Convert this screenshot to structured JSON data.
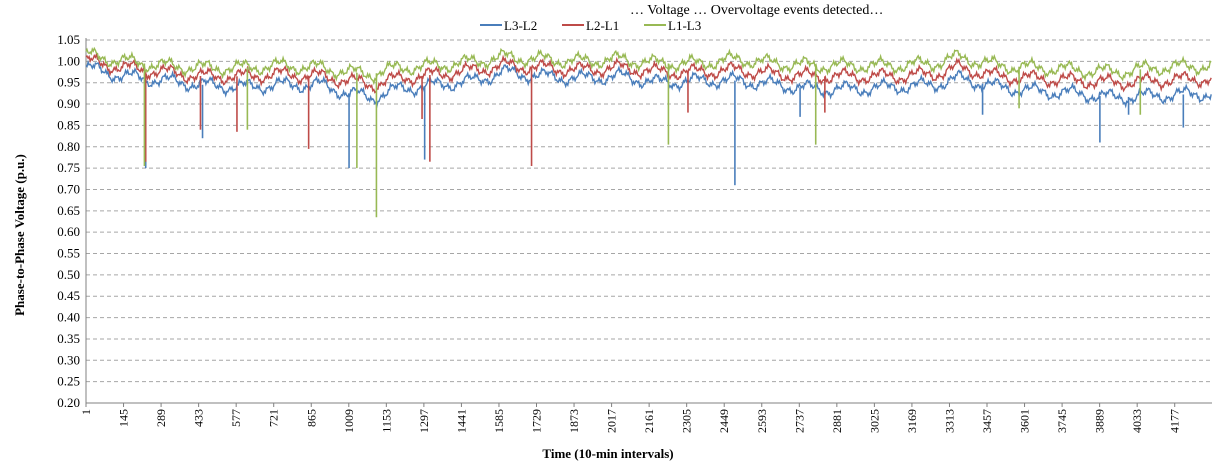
{
  "top_cut_text": "… Voltage … Overvoltage events detected…",
  "chart_data": {
    "type": "line",
    "xlabel": "Time (10-min intervals)",
    "ylabel": "Phase-to-Phase Voltage (p.u.)",
    "ylim": [
      0.2,
      1.05
    ],
    "yticks": [
      "0.20",
      "0.25",
      "0.30",
      "0.35",
      "0.40",
      "0.45",
      "0.50",
      "0.55",
      "0.60",
      "0.65",
      "0.70",
      "0.75",
      "0.80",
      "0.85",
      "0.90",
      "0.95",
      "1.00",
      "1.05"
    ],
    "xrange": [
      1,
      4320
    ],
    "xticks": [
      1,
      145,
      289,
      433,
      577,
      721,
      865,
      1009,
      1153,
      1297,
      1441,
      1585,
      1729,
      1873,
      2017,
      2161,
      2305,
      2449,
      2593,
      2737,
      2881,
      3025,
      3169,
      3313,
      3457,
      3601,
      3745,
      3889,
      4033,
      4177
    ],
    "grid": "horizontal-dashed",
    "legend_position": "top-center",
    "series": [
      {
        "name": "L3-L2",
        "color": "#4a7ebb",
        "baseline": [
          [
            1,
            0.985
          ],
          [
            150,
            0.965
          ],
          [
            300,
            0.955
          ],
          [
            450,
            0.945
          ],
          [
            600,
            0.94
          ],
          [
            750,
            0.945
          ],
          [
            900,
            0.945
          ],
          [
            1009,
            0.925
          ],
          [
            1100,
            0.915
          ],
          [
            1200,
            0.935
          ],
          [
            1350,
            0.945
          ],
          [
            1500,
            0.955
          ],
          [
            1600,
            0.975
          ],
          [
            1750,
            0.965
          ],
          [
            1900,
            0.96
          ],
          [
            2050,
            0.965
          ],
          [
            2200,
            0.95
          ],
          [
            2350,
            0.955
          ],
          [
            2500,
            0.955
          ],
          [
            2650,
            0.945
          ],
          [
            2800,
            0.935
          ],
          [
            2950,
            0.935
          ],
          [
            3100,
            0.94
          ],
          [
            3250,
            0.945
          ],
          [
            3350,
            0.96
          ],
          [
            3500,
            0.94
          ],
          [
            3650,
            0.93
          ],
          [
            3800,
            0.925
          ],
          [
            3950,
            0.915
          ],
          [
            4100,
            0.92
          ],
          [
            4320,
            0.925
          ]
        ],
        "dips": [
          [
            230,
            0.75
          ],
          [
            448,
            0.82
          ],
          [
            1010,
            0.75
          ],
          [
            1300,
            0.77
          ],
          [
            2490,
            0.71
          ],
          [
            3890,
            0.81
          ],
          [
            4210,
            0.845
          ],
          [
            4000,
            0.875
          ],
          [
            3440,
            0.875
          ],
          [
            2740,
            0.87
          ]
        ]
      },
      {
        "name": "L2-L1",
        "color": "#be4b48",
        "baseline": [
          [
            1,
            1.0
          ],
          [
            150,
            0.985
          ],
          [
            300,
            0.975
          ],
          [
            450,
            0.965
          ],
          [
            600,
            0.965
          ],
          [
            750,
            0.97
          ],
          [
            900,
            0.965
          ],
          [
            1009,
            0.955
          ],
          [
            1100,
            0.945
          ],
          [
            1200,
            0.96
          ],
          [
            1350,
            0.97
          ],
          [
            1500,
            0.98
          ],
          [
            1600,
            0.99
          ],
          [
            1750,
            0.985
          ],
          [
            1900,
            0.98
          ],
          [
            2050,
            0.985
          ],
          [
            2200,
            0.975
          ],
          [
            2350,
            0.975
          ],
          [
            2500,
            0.98
          ],
          [
            2650,
            0.97
          ],
          [
            2800,
            0.965
          ],
          [
            2950,
            0.965
          ],
          [
            3100,
            0.965
          ],
          [
            3250,
            0.97
          ],
          [
            3350,
            0.985
          ],
          [
            3500,
            0.965
          ],
          [
            3650,
            0.96
          ],
          [
            3800,
            0.955
          ],
          [
            3950,
            0.95
          ],
          [
            4100,
            0.955
          ],
          [
            4320,
            0.96
          ]
        ],
        "dips": [
          [
            230,
            0.765
          ],
          [
            440,
            0.84
          ],
          [
            580,
            0.835
          ],
          [
            855,
            0.795
          ],
          [
            1290,
            0.865
          ],
          [
            1320,
            0.765
          ],
          [
            1710,
            0.755
          ],
          [
            2310,
            0.88
          ],
          [
            2835,
            0.88
          ]
        ]
      },
      {
        "name": "L1-L3",
        "color": "#98b954",
        "baseline": [
          [
            1,
            1.015
          ],
          [
            150,
            1.0
          ],
          [
            300,
            0.99
          ],
          [
            450,
            0.985
          ],
          [
            600,
            0.985
          ],
          [
            750,
            0.99
          ],
          [
            900,
            0.985
          ],
          [
            1009,
            0.975
          ],
          [
            1100,
            0.97
          ],
          [
            1200,
            0.985
          ],
          [
            1350,
            0.99
          ],
          [
            1500,
            1.0
          ],
          [
            1600,
            1.01
          ],
          [
            1750,
            1.005
          ],
          [
            1900,
            1.0
          ],
          [
            2050,
            1.005
          ],
          [
            2200,
            0.995
          ],
          [
            2350,
            0.995
          ],
          [
            2500,
            1.005
          ],
          [
            2650,
            0.995
          ],
          [
            2800,
            0.99
          ],
          [
            2950,
            0.99
          ],
          [
            3100,
            0.99
          ],
          [
            3250,
            0.995
          ],
          [
            3350,
            1.01
          ],
          [
            3500,
            0.99
          ],
          [
            3650,
            0.985
          ],
          [
            3800,
            0.98
          ],
          [
            3950,
            0.975
          ],
          [
            4100,
            0.985
          ],
          [
            4320,
            0.99
          ]
        ],
        "dips": [
          [
            225,
            0.755
          ],
          [
            620,
            0.84
          ],
          [
            1040,
            0.75
          ],
          [
            1115,
            0.635
          ],
          [
            2235,
            0.805
          ],
          [
            2800,
            0.805
          ],
          [
            3580,
            0.89
          ],
          [
            4045,
            0.875
          ]
        ]
      }
    ]
  }
}
